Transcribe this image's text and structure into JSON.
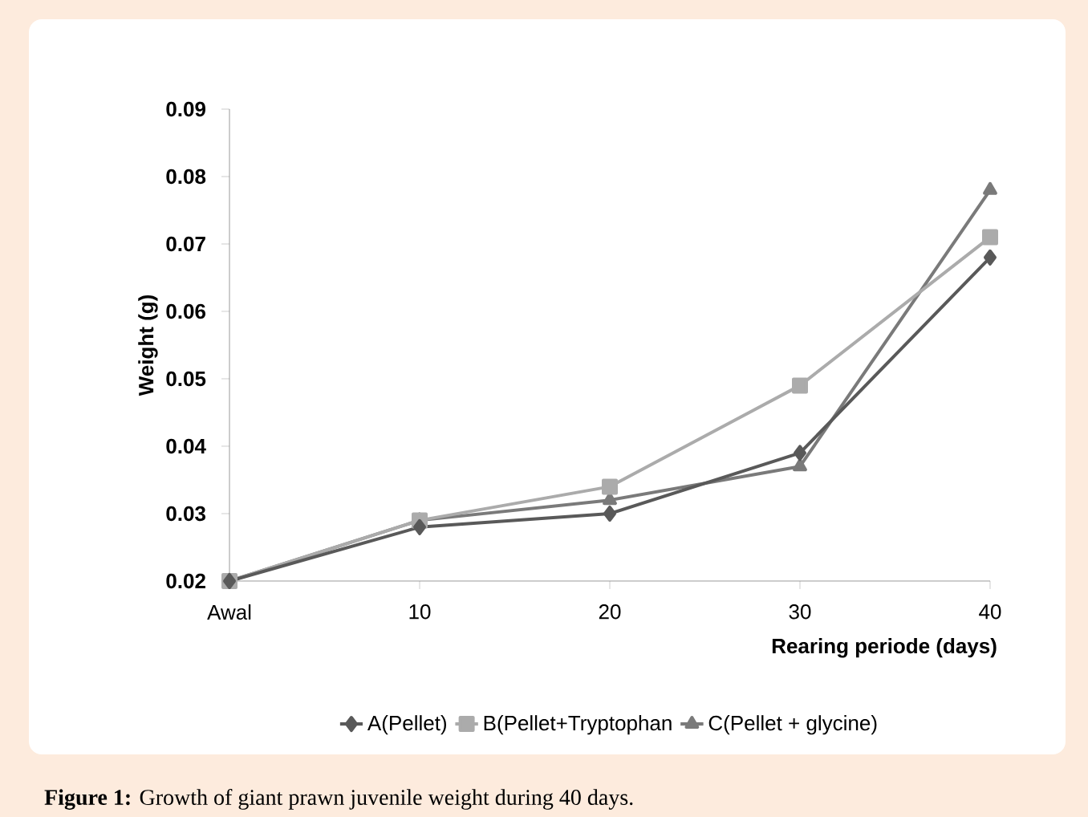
{
  "chart_data": {
    "type": "line",
    "categories": [
      "Awal",
      "10",
      "20",
      "30",
      "40"
    ],
    "series": [
      {
        "name": "A(Pellet)",
        "color": "#595959",
        "marker": "diamond",
        "values": [
          0.02,
          0.028,
          0.03,
          0.039,
          0.068
        ]
      },
      {
        "name": "B(Pellet+Tryptophan",
        "color": "#ababab",
        "marker": "square",
        "values": [
          0.02,
          0.029,
          0.034,
          0.049,
          0.071
        ]
      },
      {
        "name": "C(Pellet + glycine)",
        "color": "#7a7a7a",
        "marker": "triangle",
        "values": [
          0.02,
          0.029,
          0.032,
          0.037,
          0.078
        ]
      }
    ],
    "xlabel": "Rearing periode (days)",
    "ylabel": "Weight (g)",
    "ylim": [
      0.02,
      0.09
    ],
    "yticks": [
      0.02,
      0.03,
      0.04,
      0.05,
      0.06,
      0.07,
      0.08,
      0.09
    ],
    "grid": false,
    "legend": "bottom",
    "line_style": "solid",
    "annotations": [
      "**Figure 1:** Growth of giant prawn juvenile weight during 40 days."
    ]
  }
}
